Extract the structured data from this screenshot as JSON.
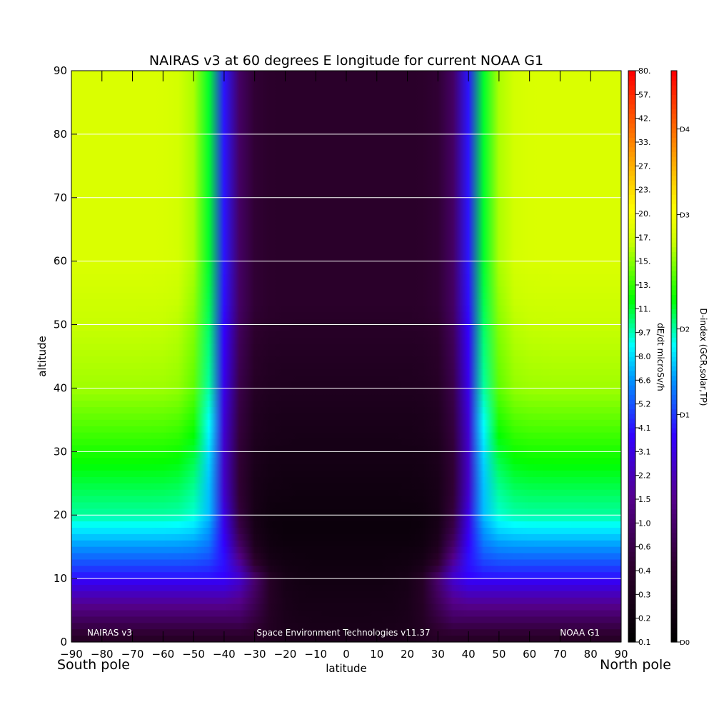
{
  "chart_data": {
    "type": "heatmap",
    "title": "NAIRAS v3 at 60 degrees E longitude for current NOAA G1",
    "xlabel": "latitude",
    "ylabel": "altitude",
    "x_ticks": [
      -90,
      -80,
      -70,
      -60,
      -50,
      -40,
      -30,
      -20,
      -10,
      0,
      10,
      20,
      30,
      40,
      50,
      60,
      70,
      80,
      90
    ],
    "y_ticks": [
      0,
      10,
      20,
      30,
      40,
      50,
      60,
      70,
      80,
      90
    ],
    "xlim": [
      -90,
      90
    ],
    "ylim": [
      0,
      90
    ],
    "horizontal_gridlines": [
      10,
      20,
      30,
      40,
      50,
      60,
      70,
      80
    ],
    "corner_labels": {
      "left": "South pole",
      "right": "North pole"
    },
    "footer": {
      "left": "NAIRAS v3",
      "center": "Space Environment Technologies v11.37",
      "right": "NOAA G1"
    },
    "colorbar_dose": {
      "label": "dE/dt microSv/h",
      "ticks": [
        "0.1",
        "0.2",
        "0.3",
        "0.4",
        "0.6",
        "1.0",
        "1.5",
        "2.2",
        "3.1",
        "4.1",
        "5.2",
        "6.6",
        "8.0",
        "9.7",
        "11.",
        "13.",
        "15.",
        "17.",
        "20.",
        "23.",
        "27.",
        "33.",
        "42.",
        "57.",
        "80."
      ]
    },
    "colorbar_dindex": {
      "label": "D-index (GCR,solar,TP)",
      "ticks": [
        "D0",
        "D1",
        "D2",
        "D3",
        "D4"
      ],
      "tick_fractions": [
        0.0,
        0.398,
        0.548,
        0.748,
        0.898
      ]
    },
    "field_description": {
      "high_lat_plateau_value": "17.",
      "center_value": "0.1",
      "cutoff_edge_latitude_at_high_altitude": 40,
      "cutoff_edge_latitude_at_low_altitude": 30
    }
  }
}
